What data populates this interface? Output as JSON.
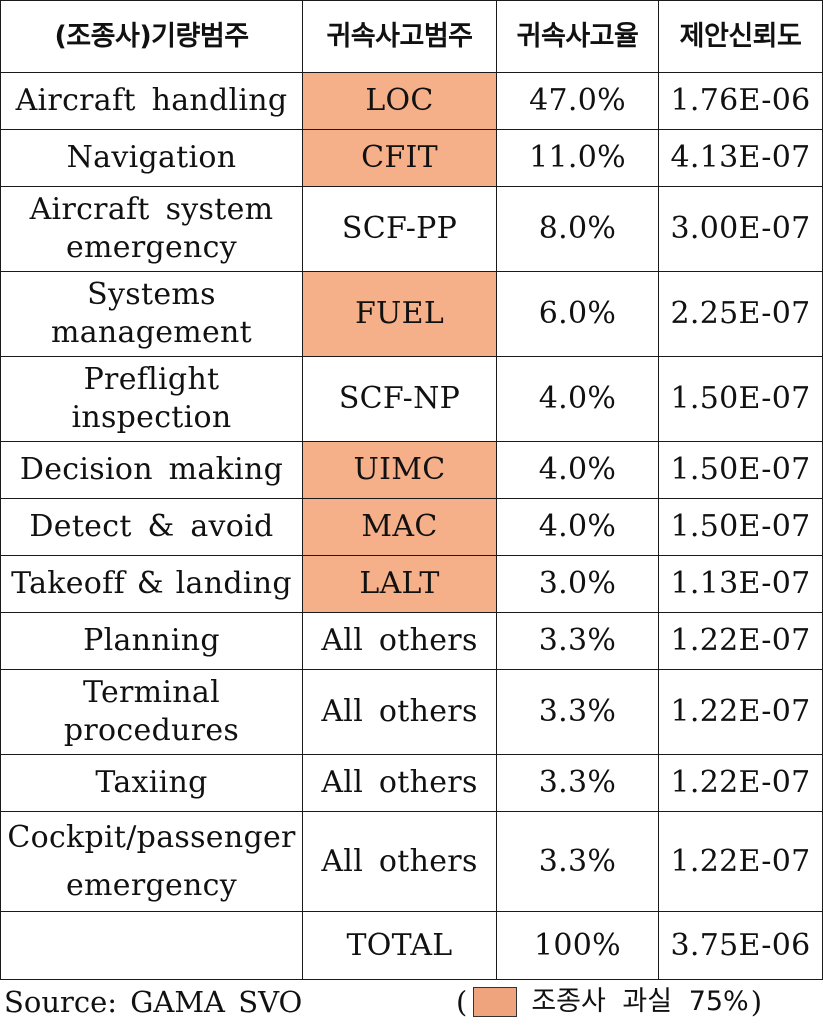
{
  "headers": [
    "(조종사)기량범주",
    "귀속사고범주",
    "귀속사고율",
    "제안신뢰도"
  ],
  "rows": [
    {
      "skill": "Aircraft handling",
      "category": "LOC",
      "rate": "47.0%",
      "reliability": "1.76E-06",
      "pilot_fault": true
    },
    {
      "skill": "Navigation",
      "category": "CFIT",
      "rate": "11.0%",
      "reliability": "4.13E-07",
      "pilot_fault": true
    },
    {
      "skill": "Aircraft system emergency",
      "category": "SCF-PP",
      "rate": "8.0%",
      "reliability": "3.00E-07",
      "pilot_fault": false
    },
    {
      "skill": "Systems management",
      "category": "FUEL",
      "rate": "6.0%",
      "reliability": "2.25E-07",
      "pilot_fault": true
    },
    {
      "skill": "Preflight inspection",
      "category": "SCF-NP",
      "rate": "4.0%",
      "reliability": "1.50E-07",
      "pilot_fault": false
    },
    {
      "skill": "Decision making",
      "category": "UIMC",
      "rate": "4.0%",
      "reliability": "1.50E-07",
      "pilot_fault": true
    },
    {
      "skill": "Detect & avoid",
      "category": "MAC",
      "rate": "4.0%",
      "reliability": "1.50E-07",
      "pilot_fault": true
    },
    {
      "skill": "Takeoff & landing",
      "category": "LALT",
      "rate": "3.0%",
      "reliability": "1.13E-07",
      "pilot_fault": true
    },
    {
      "skill": "Planning",
      "category": "All others",
      "rate": "3.3%",
      "reliability": "1.22E-07",
      "pilot_fault": false
    },
    {
      "skill": "Terminal procedures",
      "category": "All others",
      "rate": "3.3%",
      "reliability": "1.22E-07",
      "pilot_fault": false
    },
    {
      "skill": "Taxiing",
      "category": "All others",
      "rate": "3.3%",
      "reliability": "1.22E-07",
      "pilot_fault": false
    },
    {
      "skill": "Cockpit/passenger emergency",
      "category": "All others",
      "rate": "3.3%",
      "reliability": "1.22E-07",
      "pilot_fault": false
    }
  ],
  "total": {
    "skill": "",
    "category": "TOTAL",
    "rate": "100%",
    "reliability": "3.75E-06"
  },
  "footer": {
    "source": "Source: GAMA SVO",
    "legend_open": "(",
    "legend_text": "조종사 과실 75%",
    "legend_close": ")"
  },
  "colors": {
    "pilot_fault_fill": "#f5b08a",
    "border": "#1a1a1a"
  }
}
